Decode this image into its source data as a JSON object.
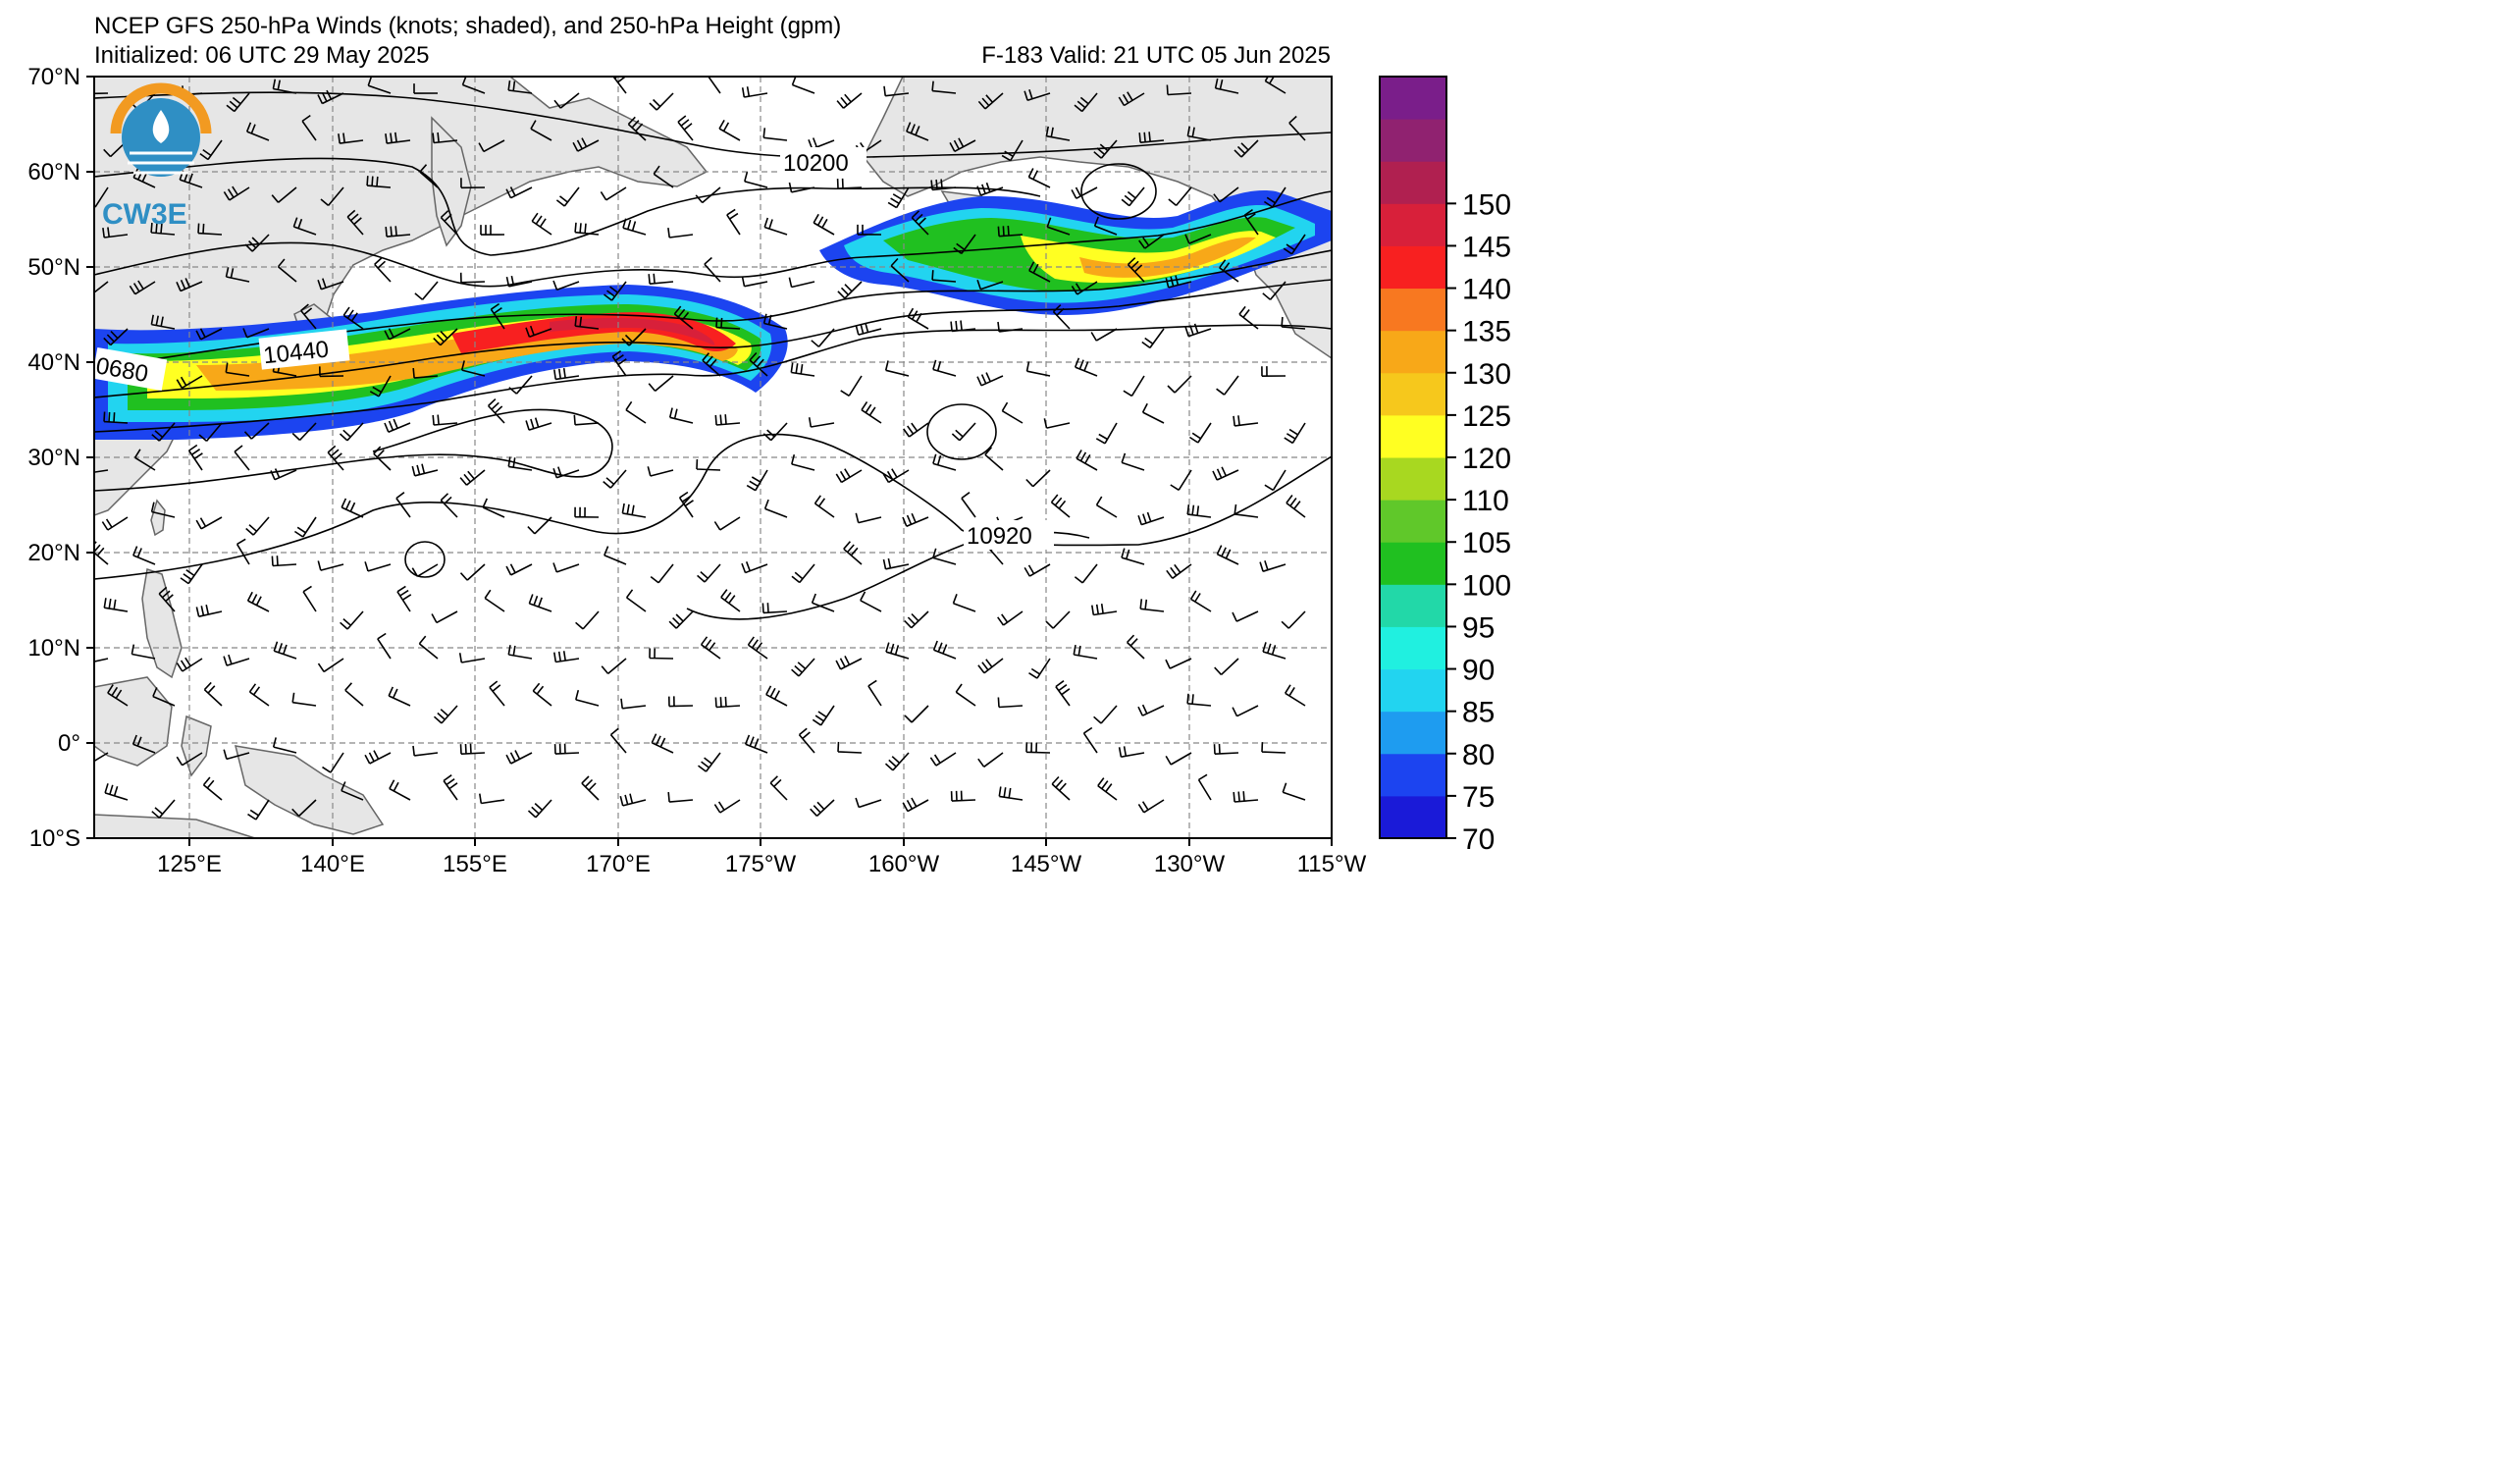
{
  "title": {
    "line1": "NCEP GFS 250-hPa Winds (knots; shaded), and 250-hPa Height (gpm)",
    "init": "Initialized: 06 UTC 29 May 2025",
    "valid": "F-183  Valid: 21 UTC 05 Jun 2025"
  },
  "logo": {
    "text": "CW3E",
    "icon": "cw3e-logo-icon"
  },
  "lat_labels": [
    "70°N",
    "60°N",
    "50°N",
    "40°N",
    "30°N",
    "20°N",
    "10°N",
    "0°",
    "10°S"
  ],
  "lon_labels": [
    "125°E",
    "140°E",
    "155°E",
    "170°E",
    "175°W",
    "160°W",
    "145°W",
    "130°W",
    "115°W"
  ],
  "contour_labels": [
    "10200",
    "10440",
    "0680",
    "10920"
  ],
  "colorbar": {
    "ticks": [
      "70",
      "75",
      "80",
      "85",
      "90",
      "95",
      "100",
      "105",
      "110",
      "120",
      "125",
      "130",
      "135",
      "140",
      "145",
      "150"
    ],
    "colors": [
      "#1a1ad8",
      "#1c44f0",
      "#1e9cf0",
      "#22d4f0",
      "#20f0e0",
      "#22d8a8",
      "#20c020",
      "#60c82a",
      "#a8d820",
      "#ffff22",
      "#f6c81c",
      "#f8a818",
      "#f87820",
      "#f82020",
      "#d8203a",
      "#b02050",
      "#902270",
      "#7a1e8a"
    ]
  },
  "colors": {
    "land": "#e6e6e6",
    "coast": "#666666",
    "grid": "#888888"
  }
}
